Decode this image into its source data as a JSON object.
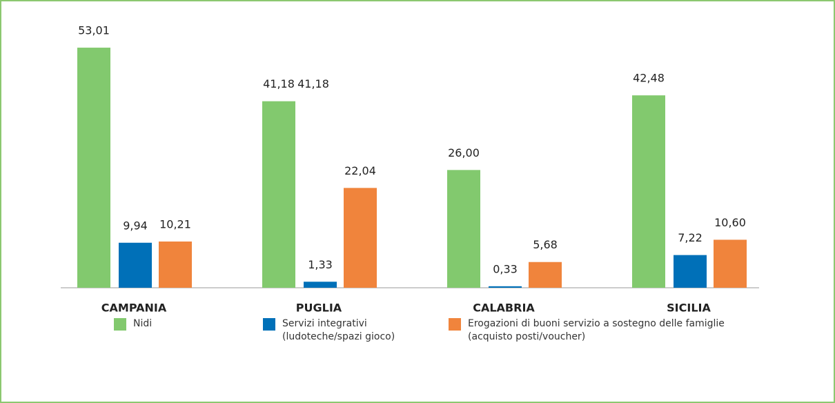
{
  "chart_data": {
    "type": "bar",
    "categories": [
      "CAMPANIA",
      "PUGLIA",
      "CALABRIA",
      "SICILIA"
    ],
    "series": [
      {
        "name": "Nidi",
        "color": "#82c96e",
        "values": [
          53.01,
          41.18,
          26.0,
          42.48
        ],
        "value_labels": [
          "53,01",
          "41,18",
          "26,00",
          "42,48"
        ]
      },
      {
        "name": "Servizi integrativi\n(ludoteche/spazi gioco)",
        "color": "#0070b8",
        "values": [
          9.94,
          1.33,
          0.33,
          7.22
        ],
        "value_labels": [
          "9,94",
          "1,33",
          "0,33",
          "7,22"
        ]
      },
      {
        "name": "Erogazioni di buoni servizio a sostegno delle famiglie\n(acquisto posti/voucher)",
        "color": "#f0843c",
        "values": [
          10.21,
          22.04,
          5.68,
          10.6
        ],
        "value_labels": [
          "10,21",
          "22,04",
          "5,68",
          "10,60"
        ]
      }
    ],
    "annotations": [
      {
        "text": "41,18"
      }
    ],
    "ylim": [
      0,
      55
    ],
    "legend": "bottom"
  }
}
